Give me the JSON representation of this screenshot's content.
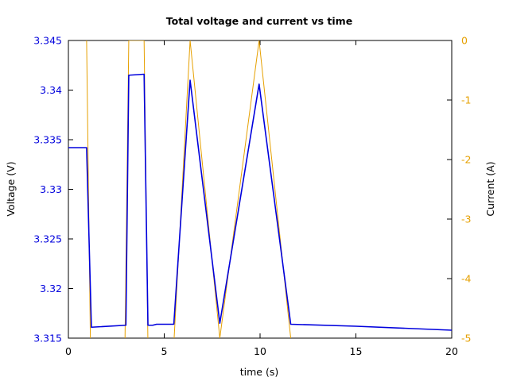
{
  "chart_data": {
    "type": "line",
    "title": "Total voltage and current vs time",
    "xlabel": "time (s)",
    "ylabel_left": "Voltage (V)",
    "ylabel_right": "Current (A)",
    "xlim": [
      0,
      20
    ],
    "ylim_left": [
      3.315,
      3.345
    ],
    "ylim_right": [
      -5,
      0
    ],
    "xticks": [
      0,
      5,
      10,
      15,
      20
    ],
    "xtick_labels": [
      "0",
      "5",
      "10",
      "15",
      "20"
    ],
    "yticks_left": [
      3.315,
      3.32,
      3.325,
      3.33,
      3.335,
      3.34,
      3.345
    ],
    "ytick_labels_left": [
      "3.315",
      "3.32",
      "3.325",
      "3.33",
      "3.335",
      "3.34",
      "3.345"
    ],
    "yticks_right": [
      0,
      -1,
      -2,
      -3,
      -4,
      -5
    ],
    "ytick_labels_right": [
      "0",
      "-1",
      "-2",
      "-3",
      "-4",
      "-5"
    ],
    "grid": false,
    "colors": {
      "voltage": "#0000dd",
      "current": "#e6a000",
      "axes": "#000000"
    },
    "series": [
      {
        "axis": "left",
        "x": [
          0,
          0.95,
          1.2,
          3.0,
          3.15,
          3.95,
          4.15,
          4.4,
          4.6,
          5.5,
          6.35,
          7.9,
          9.95,
          11.6,
          15,
          20
        ],
        "y": [
          3.3342,
          3.3342,
          3.3161,
          3.3163,
          3.3415,
          3.3416,
          3.3163,
          3.3163,
          3.3164,
          3.3164,
          3.341,
          3.3165,
          3.3406,
          3.3164,
          3.3162,
          3.3158
        ]
      },
      {
        "axis": "right",
        "x": [
          0.95,
          1.15,
          2.95,
          3.15,
          3.95,
          4.15,
          5.5,
          6.35,
          7.9,
          9.95,
          11.6
        ],
        "y": [
          0,
          -5.1,
          -5.1,
          0,
          0,
          -5.1,
          -5.1,
          0,
          -5.0,
          0,
          -5.0
        ]
      }
    ]
  }
}
